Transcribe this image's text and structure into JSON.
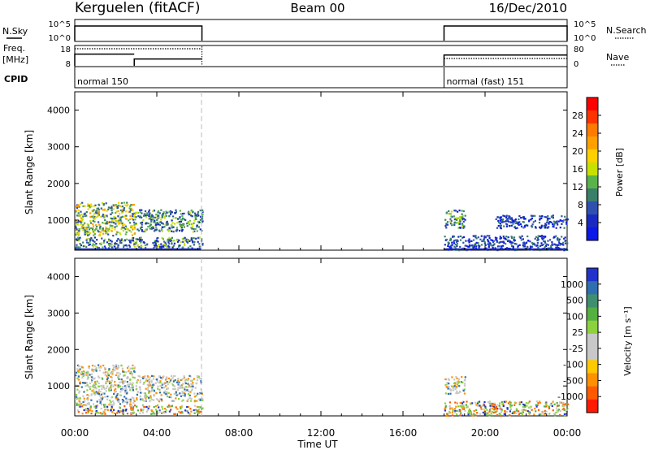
{
  "header": {
    "station": "Kerguelen (fitACF)",
    "beam": "Beam 00",
    "date": "16/Dec/2010"
  },
  "aux_panels": {
    "nsky_label": "N.Sky",
    "nsky_ticks": [
      "10^5",
      "10^0"
    ],
    "nsearch_label": "N.Search",
    "nsearch_ticks": [
      "10^5",
      "10^0"
    ],
    "freq_label_1": "Freq.",
    "freq_label_2": "[MHz]",
    "freq_ticks": [
      "18",
      "8"
    ],
    "nave_label": "Nave",
    "nave_ticks": [
      "80",
      "0"
    ],
    "cpid_label": "CPID",
    "cpid_segments": [
      {
        "label": "normal 150",
        "start_h": 0.0,
        "end_h": 6.2
      },
      {
        "label": "normal (fast) 151",
        "start_h": 18.0,
        "end_h": 24.0
      }
    ],
    "freq_steps": [
      {
        "start_h": 0.0,
        "end_h": 2.9,
        "mhz": 14
      },
      {
        "start_h": 2.9,
        "end_h": 6.2,
        "mhz": 11.5
      },
      {
        "start_h": 18.0,
        "end_h": 24.0,
        "mhz": 13.5
      }
    ]
  },
  "colorbars": {
    "power": {
      "label": "Power [dB]",
      "ticks": [
        "28",
        "24",
        "20",
        "16",
        "12",
        "8",
        "4"
      ],
      "colors": [
        "#ff0000",
        "#ff3300",
        "#ff7a00",
        "#ffa000",
        "#ffd000",
        "#c8e000",
        "#5ab34a",
        "#3a7f6a",
        "#3050b0",
        "#1a2ac0",
        "#0a18e8"
      ]
    },
    "velocity": {
      "label": "Velocity [m s⁻¹]",
      "ticks": [
        "1000",
        "500",
        "100",
        "25",
        "-25",
        "-100",
        "-500",
        "-1000"
      ],
      "colors": [
        "#2233cc",
        "#2f6fb0",
        "#3f8f6f",
        "#55b040",
        "#8cd23e",
        "#c8c8c8",
        "#c8c8c8",
        "#ffc800",
        "#ff9000",
        "#ff5a00",
        "#ff1a00"
      ]
    }
  },
  "chart_data": [
    {
      "type": "heatmap",
      "title": "Power",
      "ylabel": "Slant Range [km]",
      "xlabel": "Time UT",
      "x_ticks": [
        "00:00",
        "04:00",
        "08:00",
        "12:00",
        "16:00",
        "20:00",
        "00:00"
      ],
      "x_range_h": [
        0,
        24
      ],
      "ylim": [
        180,
        4500
      ],
      "y_ticks": [
        1000,
        2000,
        3000,
        4000
      ],
      "scatter_regions": [
        {
          "t0": 0.0,
          "t1": 2.9,
          "r0": 600,
          "r1": 1500,
          "level": "high"
        },
        {
          "t0": 0.0,
          "t1": 6.2,
          "r0": 250,
          "r1": 550,
          "level": "mid"
        },
        {
          "t0": 2.9,
          "t1": 6.2,
          "r0": 700,
          "r1": 1300,
          "level": "mid"
        },
        {
          "t0": 18.0,
          "t1": 19.0,
          "r0": 800,
          "r1": 1300,
          "level": "mid"
        },
        {
          "t0": 18.0,
          "t1": 24.0,
          "r0": 200,
          "r1": 600,
          "level": "low"
        },
        {
          "t0": 20.5,
          "t1": 24.0,
          "r0": 800,
          "r1": 1150,
          "level": "low"
        }
      ]
    },
    {
      "type": "heatmap",
      "title": "Velocity",
      "ylabel": "Slant Range [km]",
      "xlabel": "Time UT",
      "x_ticks": [
        "00:00",
        "04:00",
        "08:00",
        "12:00",
        "16:00",
        "20:00",
        "00:00"
      ],
      "x_range_h": [
        0,
        24
      ],
      "ylim": [
        180,
        4500
      ],
      "y_ticks": [
        1000,
        2000,
        3000,
        4000
      ],
      "scatter_regions": [
        {
          "t0": 0.0,
          "t1": 2.9,
          "r0": 500,
          "r1": 1600,
          "level": "ground"
        },
        {
          "t0": 2.9,
          "t1": 6.2,
          "r0": 600,
          "r1": 1300,
          "level": "ground"
        },
        {
          "t0": 0.0,
          "t1": 6.2,
          "r0": 250,
          "r1": 500,
          "level": "mixed"
        },
        {
          "t0": 18.0,
          "t1": 19.0,
          "r0": 800,
          "r1": 1300,
          "level": "ground"
        },
        {
          "t0": 18.0,
          "t1": 24.0,
          "r0": 200,
          "r1": 600,
          "level": "mixed"
        }
      ]
    }
  ],
  "axes": {
    "x_title": "Time UT",
    "y_title": "Slant Range [km]"
  }
}
